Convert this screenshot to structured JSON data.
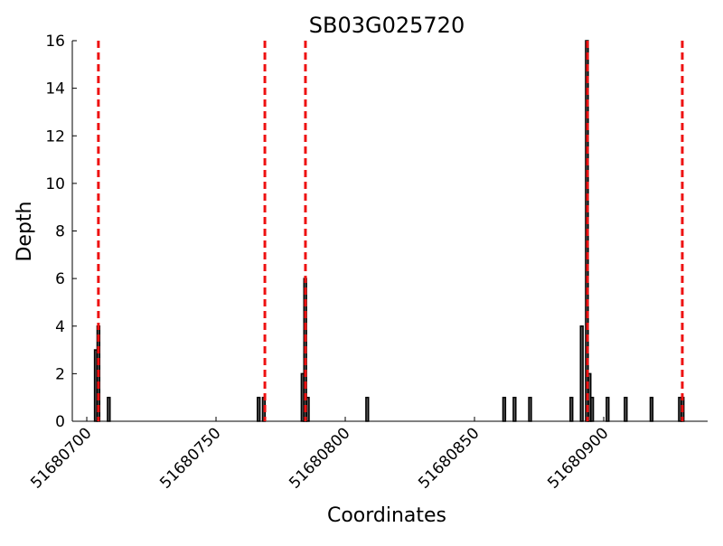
{
  "chart_data": {
    "type": "bar",
    "title": "SB03G025720",
    "x_label": "Coordinates",
    "y_label": "Depth",
    "x": [
      51680703,
      51680704,
      51680708,
      51680766,
      51680768,
      51680783,
      51680784,
      51680785,
      51680808,
      51680861,
      51680865,
      51680871,
      51680887,
      51680891,
      51680893,
      51680894,
      51680895,
      51680901,
      51680908,
      51680918,
      51680929,
      51680930
    ],
    "values": [
      3,
      4,
      1,
      1,
      1,
      2,
      6,
      1,
      1,
      1,
      1,
      1,
      1,
      4,
      16,
      2,
      1,
      1,
      1,
      1,
      1,
      1
    ],
    "color": "#555555",
    "vlines": [
      51680704.5,
      51680768.9,
      51680784.6,
      51680893.7,
      51680930.4
    ],
    "vline_color": "#ee1111",
    "xlim": [
      51680694.4,
      51680940.2
    ],
    "xticks": [
      51680700,
      51680750,
      51680800,
      51680850,
      51680900
    ],
    "ylim": [
      0,
      16
    ],
    "yticks": [
      0,
      2,
      4,
      6,
      8,
      10,
      12,
      14,
      16
    ]
  }
}
